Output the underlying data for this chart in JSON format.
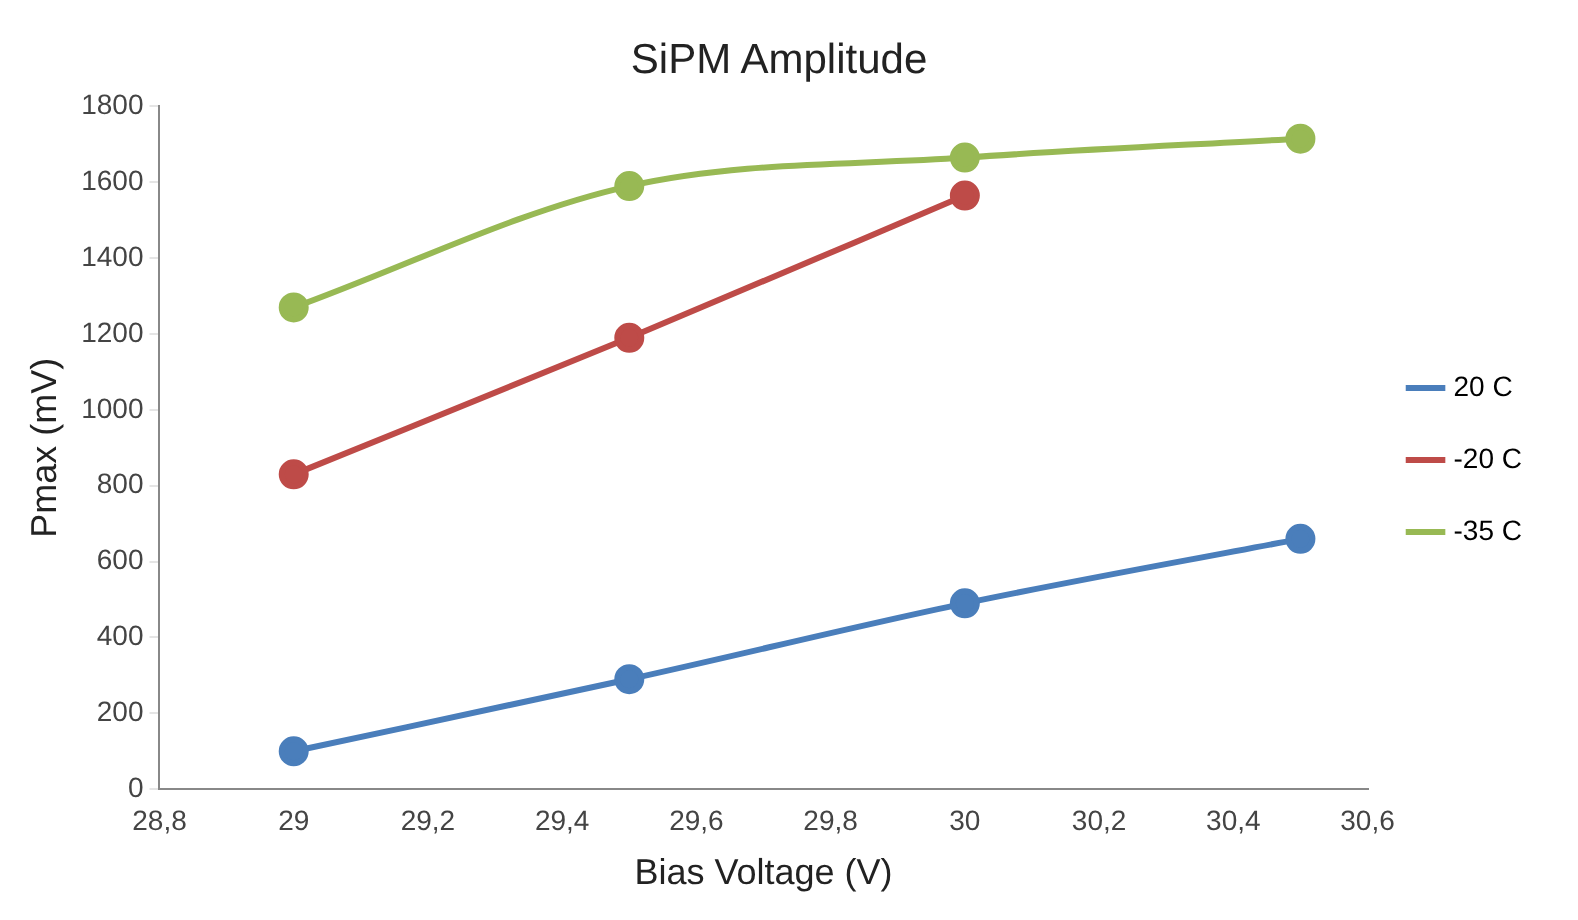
{
  "chart_data": {
    "type": "line",
    "title": "SiPM Amplitude",
    "xlabel": "Bias Voltage (V)",
    "ylabel": "Pmax (mV)",
    "x": [
      29,
      29.5,
      30,
      30.5
    ],
    "series": [
      {
        "name": "20 C",
        "color": "#4a7ebb",
        "values": [
          100,
          290,
          490,
          660
        ]
      },
      {
        "name": "-20 C",
        "color": "#be4b48",
        "values": [
          830,
          1190,
          1565,
          null
        ]
      },
      {
        "name": "-35 C",
        "color": "#98b954",
        "values": [
          1270,
          1590,
          1665,
          1715
        ]
      }
    ],
    "xlim": [
      28.8,
      30.6
    ],
    "xticks": [
      {
        "value": 28.8,
        "label": "28,8"
      },
      {
        "value": 29,
        "label": "29"
      },
      {
        "value": 29.2,
        "label": "29,2"
      },
      {
        "value": 29.4,
        "label": "29,4"
      },
      {
        "value": 29.6,
        "label": "29,6"
      },
      {
        "value": 29.8,
        "label": "29,8"
      },
      {
        "value": 30,
        "label": "30"
      },
      {
        "value": 30.2,
        "label": "30,2"
      },
      {
        "value": 30.4,
        "label": "30,4"
      },
      {
        "value": 30.6,
        "label": "30,6"
      }
    ],
    "ylim": [
      0,
      1800
    ],
    "yticks": [
      0,
      200,
      400,
      600,
      800,
      1000,
      1200,
      1400,
      1600,
      1800
    ],
    "grid": false,
    "legend": "right",
    "marker": "circle",
    "line_style": "solid"
  }
}
